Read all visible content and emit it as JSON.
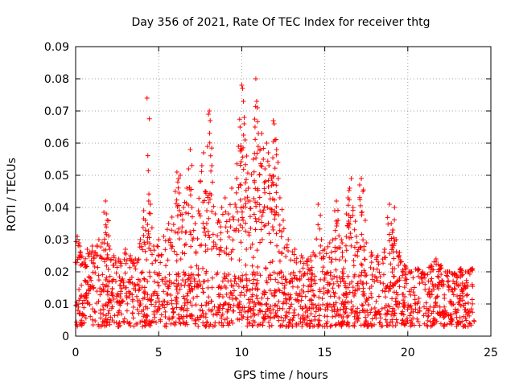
{
  "chart_data": {
    "type": "scatter",
    "title": "Day 356 of 2021, Rate Of TEC Index for receiver thtg",
    "xlabel": "GPS time / hours",
    "ylabel": "ROTI / TECUs",
    "xlim": [
      0,
      25
    ],
    "ylim": [
      0,
      0.09
    ],
    "xticks": [
      "0",
      "5",
      "10",
      "15",
      "20",
      "25"
    ],
    "yticks": [
      "0",
      "0.01",
      "0.02",
      "0.03",
      "0.04",
      "0.05",
      "0.06",
      "0.07",
      "0.08",
      "0.09"
    ],
    "grid": true,
    "marker": "+",
    "color": "#ff0000",
    "baseline_band": {
      "x_range": [
        0,
        24
      ],
      "y_range": [
        0.003,
        0.02
      ],
      "note": "dense cloud of points across the full day"
    },
    "series": [
      {
        "name": "ROTI",
        "points": [
          [
            0.1,
            0.031
          ],
          [
            0.2,
            0.029
          ],
          [
            0.3,
            0.026
          ],
          [
            0.5,
            0.023
          ],
          [
            0.7,
            0.027
          ],
          [
            1.0,
            0.028
          ],
          [
            1.2,
            0.026
          ],
          [
            1.4,
            0.03
          ],
          [
            1.6,
            0.029
          ],
          [
            1.8,
            0.042
          ],
          [
            1.85,
            0.038
          ],
          [
            1.9,
            0.036
          ],
          [
            2.0,
            0.028
          ],
          [
            2.3,
            0.025
          ],
          [
            2.6,
            0.024
          ],
          [
            3.0,
            0.027
          ],
          [
            3.3,
            0.025
          ],
          [
            3.6,
            0.024
          ],
          [
            3.9,
            0.03
          ],
          [
            4.1,
            0.039
          ],
          [
            4.2,
            0.036
          ],
          [
            4.3,
            0.074
          ],
          [
            4.4,
            0.042
          ],
          [
            4.5,
            0.041
          ],
          [
            4.7,
            0.028
          ],
          [
            5.0,
            0.03
          ],
          [
            5.3,
            0.031
          ],
          [
            5.6,
            0.035
          ],
          [
            5.8,
            0.037
          ],
          [
            6.0,
            0.045
          ],
          [
            6.1,
            0.051
          ],
          [
            6.2,
            0.049
          ],
          [
            6.3,
            0.05
          ],
          [
            6.5,
            0.04
          ],
          [
            6.7,
            0.046
          ],
          [
            6.8,
            0.052
          ],
          [
            6.9,
            0.058
          ],
          [
            7.0,
            0.04
          ],
          [
            7.2,
            0.035
          ],
          [
            7.5,
            0.048
          ],
          [
            7.6,
            0.053
          ],
          [
            7.7,
            0.057
          ],
          [
            7.8,
            0.045
          ],
          [
            7.9,
            0.039
          ],
          [
            8.0,
            0.069
          ],
          [
            8.05,
            0.07
          ],
          [
            8.1,
            0.067
          ],
          [
            8.2,
            0.053
          ],
          [
            8.4,
            0.038
          ],
          [
            8.6,
            0.036
          ],
          [
            8.8,
            0.04
          ],
          [
            9.0,
            0.043
          ],
          [
            9.2,
            0.038
          ],
          [
            9.4,
            0.046
          ],
          [
            9.6,
            0.041
          ],
          [
            9.7,
            0.049
          ],
          [
            9.8,
            0.059
          ],
          [
            9.9,
            0.065
          ],
          [
            10.0,
            0.078
          ],
          [
            10.05,
            0.077
          ],
          [
            10.1,
            0.073
          ],
          [
            10.15,
            0.068
          ],
          [
            10.2,
            0.061
          ],
          [
            10.3,
            0.056
          ],
          [
            10.4,
            0.046
          ],
          [
            10.5,
            0.042
          ],
          [
            10.7,
            0.055
          ],
          [
            10.8,
            0.065
          ],
          [
            10.85,
            0.08
          ],
          [
            10.9,
            0.073
          ],
          [
            10.95,
            0.071
          ],
          [
            11.0,
            0.063
          ],
          [
            11.1,
            0.058
          ],
          [
            11.2,
            0.063
          ],
          [
            11.3,
            0.055
          ],
          [
            11.4,
            0.052
          ],
          [
            11.5,
            0.06
          ],
          [
            11.6,
            0.057
          ],
          [
            11.7,
            0.05
          ],
          [
            11.8,
            0.049
          ],
          [
            11.9,
            0.067
          ],
          [
            11.95,
            0.066
          ],
          [
            12.0,
            0.061
          ],
          [
            12.1,
            0.058
          ],
          [
            12.2,
            0.049
          ],
          [
            12.3,
            0.043
          ],
          [
            12.5,
            0.036
          ],
          [
            12.8,
            0.03
          ],
          [
            13.2,
            0.027
          ],
          [
            13.6,
            0.025
          ],
          [
            14.0,
            0.024
          ],
          [
            14.3,
            0.026
          ],
          [
            14.6,
            0.041
          ],
          [
            14.8,
            0.03
          ],
          [
            15.0,
            0.027
          ],
          [
            15.3,
            0.029
          ],
          [
            15.6,
            0.039
          ],
          [
            15.7,
            0.042
          ],
          [
            15.8,
            0.036
          ],
          [
            16.0,
            0.03
          ],
          [
            16.3,
            0.038
          ],
          [
            16.4,
            0.043
          ],
          [
            16.5,
            0.046
          ],
          [
            16.6,
            0.049
          ],
          [
            16.7,
            0.04
          ],
          [
            16.9,
            0.031
          ],
          [
            17.1,
            0.047
          ],
          [
            17.2,
            0.049
          ],
          [
            17.3,
            0.045
          ],
          [
            17.5,
            0.029
          ],
          [
            17.8,
            0.026
          ],
          [
            18.2,
            0.025
          ],
          [
            18.6,
            0.027
          ],
          [
            18.9,
            0.041
          ],
          [
            19.0,
            0.035
          ],
          [
            19.1,
            0.033
          ],
          [
            19.2,
            0.04
          ],
          [
            19.3,
            0.03
          ],
          [
            19.5,
            0.026
          ],
          [
            19.8,
            0.022
          ],
          [
            20.2,
            0.02
          ],
          [
            20.6,
            0.021
          ],
          [
            21.0,
            0.019
          ],
          [
            21.4,
            0.022
          ],
          [
            21.7,
            0.024
          ],
          [
            22.0,
            0.022
          ],
          [
            22.4,
            0.02
          ],
          [
            22.8,
            0.019
          ],
          [
            23.2,
            0.021
          ],
          [
            23.6,
            0.02
          ],
          [
            23.9,
            0.021
          ]
        ]
      }
    ]
  }
}
